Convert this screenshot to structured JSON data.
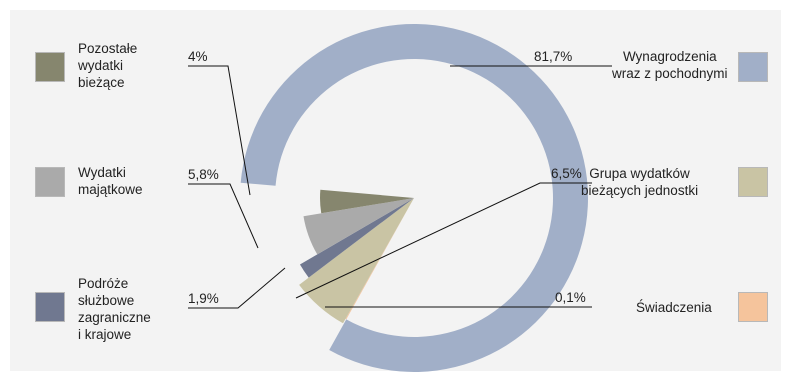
{
  "chart_data": {
    "type": "pie",
    "title": "",
    "slices": [
      {
        "label": "Wynagrodzenia wraz z pochodnymi",
        "value": 81.7,
        "value_label": "81,7%",
        "color": "#a1afc8"
      },
      {
        "label": "Świadczenia",
        "value": 0.1,
        "value_label": "0,1%",
        "color": "#f5c49c"
      },
      {
        "label": "Grupa wydatków bieżących jednostki",
        "value": 6.5,
        "value_label": "6,5%",
        "color": "#c9c4a4"
      },
      {
        "label": "Podróże służbowe zagraniczne i krajowe",
        "value": 1.9,
        "value_label": "1,9%",
        "color": "#707890"
      },
      {
        "label": "Wydatki majątkowe",
        "value": 5.8,
        "value_label": "5,8%",
        "color": "#aaaaaa"
      },
      {
        "label": "Pozostałe wydatki bieżące",
        "value": 4,
        "value_label": "4%",
        "color": "#86866e"
      }
    ],
    "legend": [
      {
        "lines": [
          "Pozostałe",
          "wydatki",
          "bieżące"
        ],
        "color": "#86866e"
      },
      {
        "lines": [
          "Wydatki",
          "majątkowe"
        ],
        "color": "#aaaaaa"
      },
      {
        "lines": [
          "Podróże",
          "służbowe",
          "zagraniczne",
          "i krajowe"
        ],
        "color": "#707890"
      },
      {
        "lines": [
          "Wynagrodzenia",
          "wraz z pochodnymi"
        ],
        "color": "#a1afc8"
      },
      {
        "lines": [
          "Grupa wydatków",
          "bieżących jednostki"
        ],
        "color": "#c9c4a4"
      },
      {
        "lines": [
          "Świadczenia"
        ],
        "color": "#f5c49c"
      }
    ]
  }
}
